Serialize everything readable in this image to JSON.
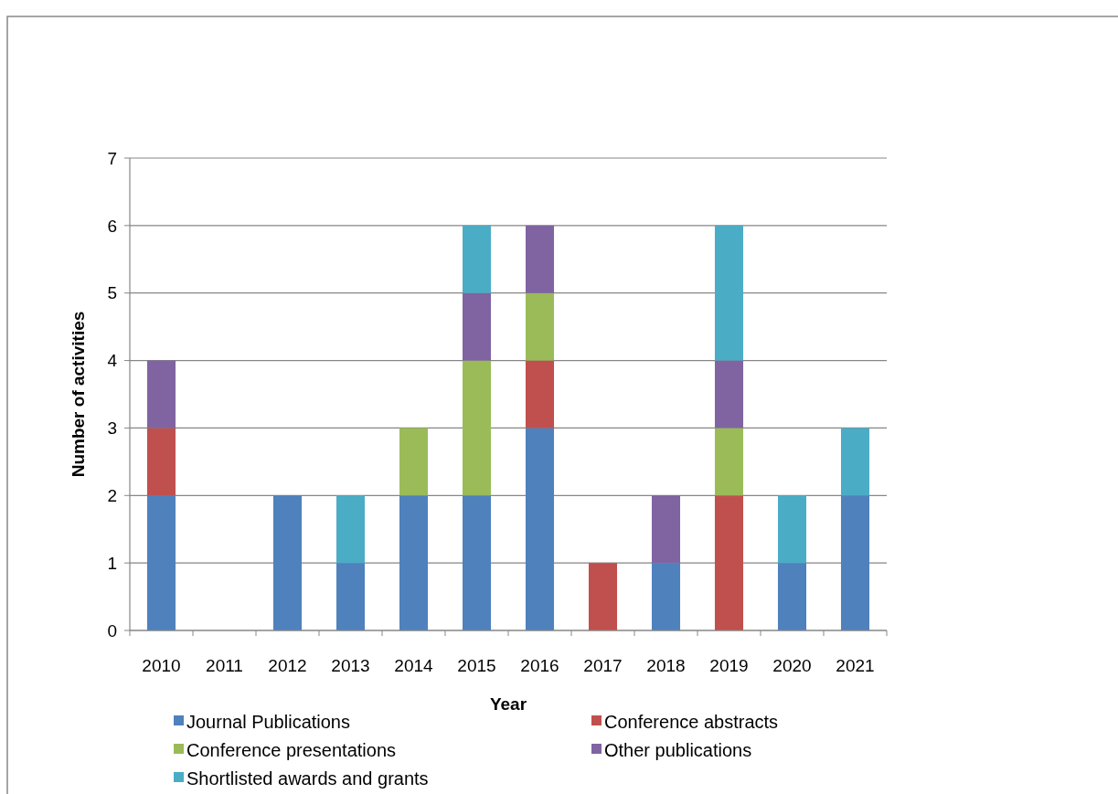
{
  "chart_data": {
    "type": "bar",
    "stacked": true,
    "xlabel": "Year",
    "ylabel": "Number of activities",
    "categories": [
      "2010",
      "2011",
      "2012",
      "2013",
      "2014",
      "2015",
      "2016",
      "2017",
      "2018",
      "2019",
      "2020",
      "2021"
    ],
    "series": [
      {
        "name": "Journal Publications",
        "color": "#4f81bd",
        "values": [
          2,
          0,
          2,
          1,
          2,
          2,
          3,
          0,
          1,
          0,
          1,
          2
        ]
      },
      {
        "name": "Conference abstracts",
        "color": "#c0504d",
        "values": [
          1,
          0,
          0,
          0,
          0,
          0,
          1,
          1,
          0,
          2,
          0,
          0
        ]
      },
      {
        "name": "Conference presentations",
        "color": "#9bbb59",
        "values": [
          0,
          0,
          0,
          0,
          1,
          2,
          1,
          0,
          0,
          1,
          0,
          0
        ]
      },
      {
        "name": "Other publications",
        "color": "#8064a2",
        "values": [
          1,
          0,
          0,
          0,
          0,
          1,
          1,
          0,
          1,
          1,
          0,
          0
        ]
      },
      {
        "name": "Shortlisted awards and grants",
        "color": "#4bacc6",
        "values": [
          0,
          0,
          0,
          1,
          0,
          1,
          0,
          0,
          0,
          2,
          1,
          1
        ]
      }
    ],
    "ylim": [
      0,
      7
    ],
    "yticks": [
      0,
      1,
      2,
      3,
      4,
      5,
      6,
      7
    ],
    "grid": "y",
    "legend": "bottom"
  }
}
